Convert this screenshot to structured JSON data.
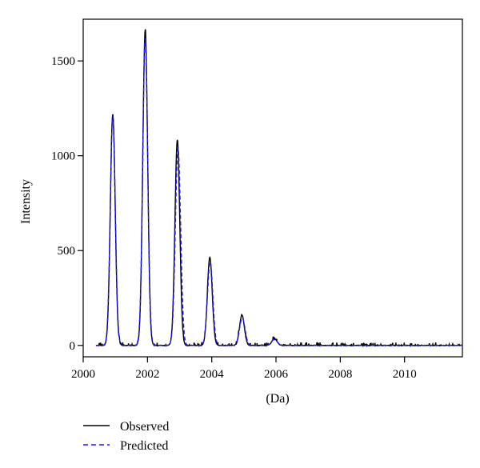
{
  "chart_data": {
    "type": "line",
    "title": "",
    "xlabel": "(Da)",
    "ylabel": "Intensity",
    "xlim": [
      2000.0,
      2011.8
    ],
    "ylim": [
      -60,
      1720
    ],
    "xticks": [
      2000,
      2002,
      2004,
      2006,
      2008,
      2010
    ],
    "xtick_labels": [
      "2000",
      "2002",
      "2004",
      "2006",
      "2008",
      "2010"
    ],
    "yticks": [
      0,
      500,
      1000,
      1500
    ],
    "ytick_labels": [
      "0",
      "500",
      "1000",
      "1500"
    ],
    "grid": false,
    "legend_position": "bottom-left, outside plot",
    "peaks_observed": [
      {
        "x": 2000.92,
        "y": 1220,
        "width": 0.075
      },
      {
        "x": 2001.93,
        "y": 1665,
        "width": 0.075
      },
      {
        "x": 2002.93,
        "y": 1085,
        "width": 0.075
      },
      {
        "x": 2003.94,
        "y": 465,
        "width": 0.075
      },
      {
        "x": 2004.94,
        "y": 160,
        "width": 0.075
      },
      {
        "x": 2005.95,
        "y": 35,
        "width": 0.08
      }
    ],
    "peaks_predicted": [
      {
        "x": 2000.92,
        "y": 1210,
        "width": 0.078
      },
      {
        "x": 2001.93,
        "y": 1620,
        "width": 0.078
      },
      {
        "x": 2002.95,
        "y": 1040,
        "width": 0.082
      },
      {
        "x": 2003.95,
        "y": 440,
        "width": 0.082
      },
      {
        "x": 2004.95,
        "y": 145,
        "width": 0.085
      },
      {
        "x": 2005.95,
        "y": 32,
        "width": 0.09
      }
    ],
    "series": [
      {
        "name": "Observed",
        "color": "#000000",
        "dash": "solid",
        "x_start": 2000.4,
        "x_end": 2011.8,
        "noise_amplitude": 10
      },
      {
        "name": "Predicted",
        "color": "#1a1aff",
        "dash": "dashed",
        "x_start": 2000.4,
        "x_end": 2011.8,
        "noise_amplitude": 0
      }
    ],
    "legend": [
      {
        "label": "Observed",
        "color": "#000000",
        "dash": "solid"
      },
      {
        "label": "Predicted",
        "color": "#1a1aff",
        "dash": "dashed"
      }
    ]
  }
}
